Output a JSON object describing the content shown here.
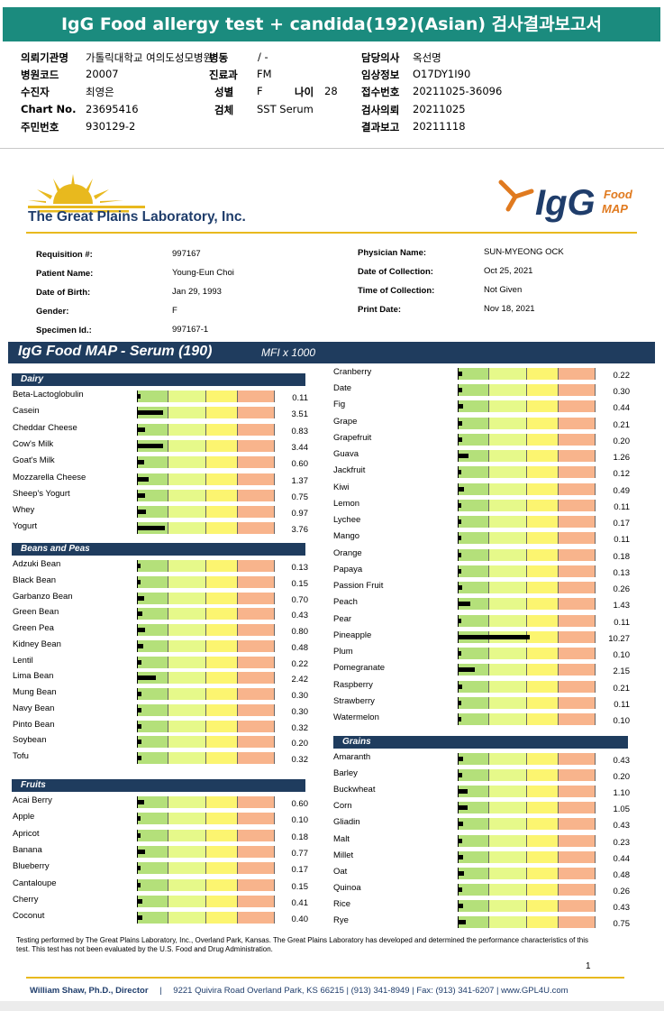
{
  "header": {
    "title": "IgG Food allergy test + candida(192)(Asian) 검사결과보고서"
  },
  "korean_info": {
    "col1": [
      {
        "label": "의뢰기관명",
        "value": "가톨릭대학교 여의도성모병원"
      },
      {
        "label": "병원코드",
        "value": "20007"
      },
      {
        "label": "수진자",
        "value": "최영은"
      },
      {
        "label": "Chart No.",
        "value": "23695416"
      },
      {
        "label": "주민번호",
        "value": "930129-2"
      }
    ],
    "col2": [
      {
        "label": "병동",
        "value": "/ -"
      },
      {
        "label": "진료과",
        "value": "FM"
      },
      {
        "label": "성별",
        "value": "F"
      },
      {
        "label": "검체",
        "value": "SST Serum"
      }
    ],
    "age": {
      "label": "나이",
      "value": "28"
    },
    "col3": [
      {
        "label": "담당의사",
        "value": "옥선명"
      },
      {
        "label": "임상정보",
        "value": "O17DY1I90"
      },
      {
        "label": "접수번호",
        "value": "20211025-36096"
      },
      {
        "label": "검사의뢰",
        "value": "20211025"
      },
      {
        "label": "결과보고",
        "value": "20211118"
      }
    ]
  },
  "lab": {
    "name": "The Great Plains Laboratory, Inc.",
    "logo_word": "IgG",
    "logo_sub1": "Food",
    "logo_sub2": "MAP",
    "colors": {
      "navy": "#1f3c5e",
      "gold": "#e8b91e",
      "orange": "#e07a1f",
      "teal": "#1b8b7e"
    }
  },
  "patient": {
    "left": [
      {
        "label": "Requisition #:",
        "value": "997167"
      },
      {
        "label": "Patient Name:",
        "value": "Young-Eun Choi"
      },
      {
        "label": "Date of Birth:",
        "value": "Jan 29, 1993"
      },
      {
        "label": "Gender:",
        "value": "F"
      },
      {
        "label": "Specimen Id.:",
        "value": "997167-1"
      }
    ],
    "right": [
      {
        "label": "Physician Name:",
        "value": "SUN-MYEONG OCK"
      },
      {
        "label": "Date of Collection:",
        "value": "Oct 25, 2021"
      },
      {
        "label": "Time of Collection:",
        "value": "Not Given"
      },
      {
        "label": "Print Date:",
        "value": "Nov 18, 2021"
      }
    ]
  },
  "panel": {
    "title": "IgG Food MAP - Serum (190)",
    "unit": "MFI x 1000"
  },
  "chart_data": {
    "type": "bar",
    "scale_zone_colors": [
      "#b4e07a",
      "#e6f98a",
      "#fcf570",
      "#f8b48c"
    ],
    "groups": [
      {
        "name": "Dairy",
        "items": [
          {
            "food": "Beta-Lactoglobulin",
            "value": "0.11"
          },
          {
            "food": "Casein",
            "value": "3.51"
          },
          {
            "food": "Cheddar Cheese",
            "value": "0.83"
          },
          {
            "food": "Cow's Milk",
            "value": "3.44"
          },
          {
            "food": "Goat's Milk",
            "value": "0.60"
          },
          {
            "food": "Mozzarella Cheese",
            "value": "1.37"
          },
          {
            "food": "Sheep's Yogurt",
            "value": "0.75"
          },
          {
            "food": "Whey",
            "value": "0.97"
          },
          {
            "food": "Yogurt",
            "value": "3.76"
          }
        ]
      },
      {
        "name": "Beans and Peas",
        "items": [
          {
            "food": "Adzuki Bean",
            "value": "0.13"
          },
          {
            "food": "Black Bean",
            "value": "0.15"
          },
          {
            "food": "Garbanzo Bean",
            "value": "0.70"
          },
          {
            "food": "Green Bean",
            "value": "0.43"
          },
          {
            "food": "Green Pea",
            "value": "0.80"
          },
          {
            "food": "Kidney Bean",
            "value": "0.48"
          },
          {
            "food": "Lentil",
            "value": "0.22"
          },
          {
            "food": "Lima Bean",
            "value": "2.42"
          },
          {
            "food": "Mung Bean",
            "value": "0.30"
          },
          {
            "food": "Navy Bean",
            "value": "0.30"
          },
          {
            "food": "Pinto Bean",
            "value": "0.32"
          },
          {
            "food": "Soybean",
            "value": "0.20"
          },
          {
            "food": "Tofu",
            "value": "0.32"
          }
        ]
      },
      {
        "name": "Fruits",
        "items": [
          {
            "food": "Acai Berry",
            "value": "0.60"
          },
          {
            "food": "Apple",
            "value": "0.10"
          },
          {
            "food": "Apricot",
            "value": "0.18"
          },
          {
            "food": "Banana",
            "value": "0.77"
          },
          {
            "food": "Blueberry",
            "value": "0.17"
          },
          {
            "food": "Cantaloupe",
            "value": "0.15"
          },
          {
            "food": "Cherry",
            "value": "0.41"
          },
          {
            "food": "Coconut",
            "value": "0.40"
          },
          {
            "food": "Cranberry",
            "value": "0.22"
          },
          {
            "food": "Date",
            "value": "0.30"
          },
          {
            "food": "Fig",
            "value": "0.44"
          },
          {
            "food": "Grape",
            "value": "0.21"
          },
          {
            "food": "Grapefruit",
            "value": "0.20"
          },
          {
            "food": "Guava",
            "value": "1.26"
          },
          {
            "food": "Jackfruit",
            "value": "0.12"
          },
          {
            "food": "Kiwi",
            "value": "0.49"
          },
          {
            "food": "Lemon",
            "value": "0.11"
          },
          {
            "food": "Lychee",
            "value": "0.17"
          },
          {
            "food": "Mango",
            "value": "0.11"
          },
          {
            "food": "Orange",
            "value": "0.18"
          },
          {
            "food": "Papaya",
            "value": "0.13"
          },
          {
            "food": "Passion Fruit",
            "value": "0.26"
          },
          {
            "food": "Peach",
            "value": "1.43"
          },
          {
            "food": "Pear",
            "value": "0.11"
          },
          {
            "food": "Pineapple",
            "value": "10.27"
          },
          {
            "food": "Plum",
            "value": "0.10"
          },
          {
            "food": "Pomegranate",
            "value": "2.15"
          },
          {
            "food": "Raspberry",
            "value": "0.21"
          },
          {
            "food": "Strawberry",
            "value": "0.11"
          },
          {
            "food": "Watermelon",
            "value": "0.10"
          }
        ]
      },
      {
        "name": "Grains",
        "items": [
          {
            "food": "Amaranth",
            "value": "0.43"
          },
          {
            "food": "Barley",
            "value": "0.20"
          },
          {
            "food": "Buckwheat",
            "value": "1.10"
          },
          {
            "food": "Corn",
            "value": "1.05"
          },
          {
            "food": "Gliadin",
            "value": "0.43"
          },
          {
            "food": "Malt",
            "value": "0.23"
          },
          {
            "food": "Millet",
            "value": "0.44"
          },
          {
            "food": "Oat",
            "value": "0.48"
          },
          {
            "food": "Quinoa",
            "value": "0.26"
          },
          {
            "food": "Rice",
            "value": "0.43"
          },
          {
            "food": "Rye",
            "value": "0.75"
          }
        ]
      }
    ]
  },
  "footnote": "Testing performed by The Great Plains Laboratory, Inc., Overland Park, Kansas.  The Great Plains Laboratory has developed and determined the performance characteristics of this test.  This test has not been evaluated by the U.S.  Food and Drug Administration.",
  "page_number": "1",
  "footer": {
    "director": "William Shaw, Ph.D., Director",
    "separator": "|",
    "address": "9221 Quivira Road Overland Park, KS 66215 | (913) 341-8949 | Fax: (913) 341-6207 | www.GPL4U.com"
  }
}
